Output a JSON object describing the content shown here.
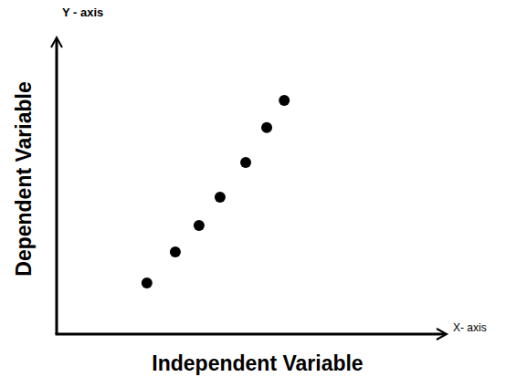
{
  "chart_data": {
    "type": "scatter",
    "x_label": "Independent Variable",
    "y_label": "Dependent Variable",
    "annotations": [
      "Y - axis",
      "X- axis"
    ],
    "x": [
      23.2,
      30.5,
      36.6,
      42.0,
      48.6,
      54.0,
      58.5
    ],
    "values": [
      17.3,
      27.8,
      36.7,
      46.3,
      58.0,
      69.8,
      79.0
    ],
    "xlim": [
      0,
      100
    ],
    "ylim": [
      0,
      100
    ],
    "color": "#000000",
    "marker": "circle",
    "grid": false,
    "tick_labels": false
  }
}
